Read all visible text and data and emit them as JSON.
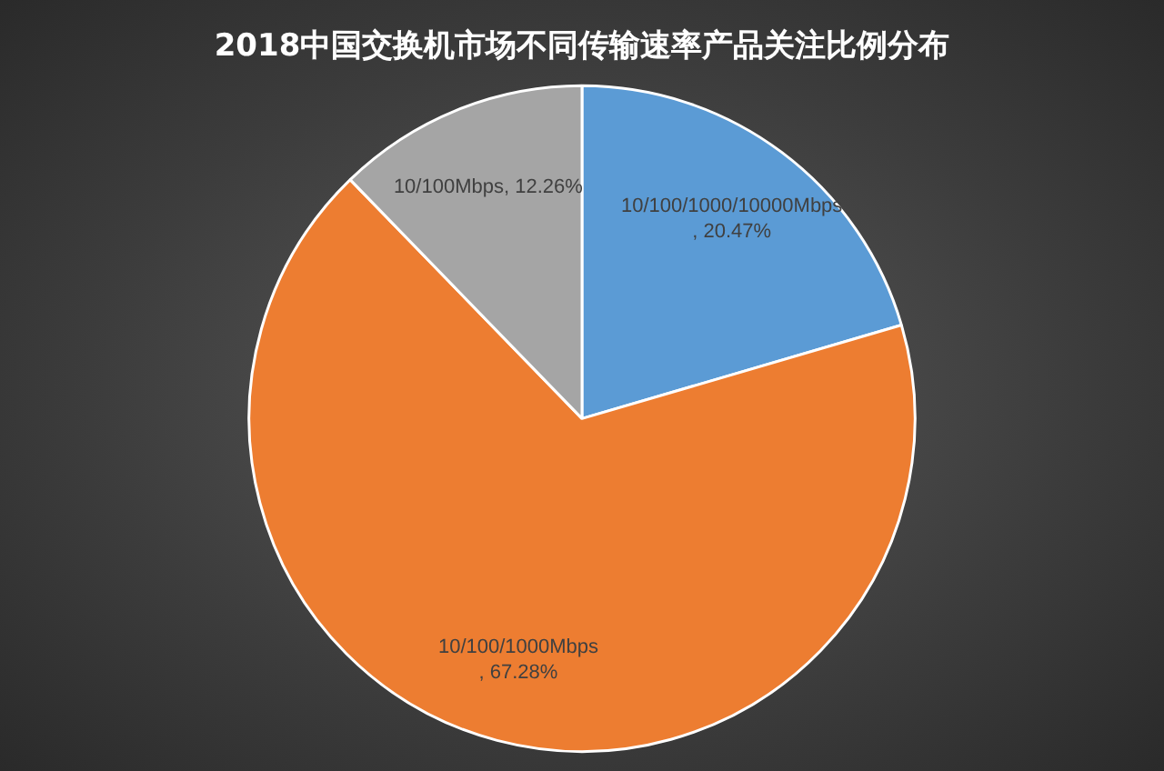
{
  "chart_data": {
    "type": "pie",
    "title": "2018中国交换机市场不同传输速率产品关注比例分布",
    "categories": [
      "10/100/1000/10000Mbps",
      "10/100/1000Mbps",
      "10/100Mbps"
    ],
    "values": [
      20.47,
      67.28,
      12.26
    ],
    "colors": [
      "#5b9bd5",
      "#ed7d31",
      "#a5a5a5"
    ],
    "value_labels": [
      ", 20.47%",
      ", 67.28%",
      ", 12.26%"
    ],
    "legend": false
  }
}
